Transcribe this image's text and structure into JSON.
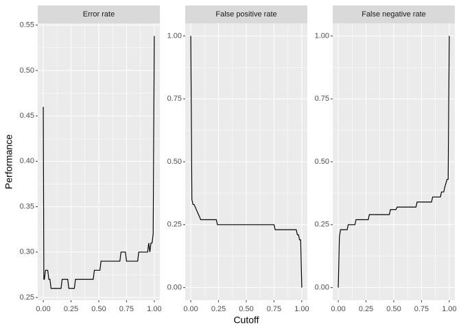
{
  "y_label": "Performance",
  "x_label": "Cutoff",
  "chart_data": [
    {
      "type": "line",
      "title": "Error rate",
      "color": "#000000",
      "x": [
        0,
        0.005,
        0.01,
        0.02,
        0.04,
        0.05,
        0.06,
        0.07,
        0.16,
        0.17,
        0.22,
        0.23,
        0.28,
        0.29,
        0.45,
        0.46,
        0.51,
        0.52,
        0.69,
        0.7,
        0.74,
        0.75,
        0.85,
        0.86,
        0.94,
        0.95,
        0.96,
        0.97,
        0.98,
        0.99,
        1.0
      ],
      "values": [
        0.46,
        0.27,
        0.27,
        0.28,
        0.28,
        0.27,
        0.27,
        0.26,
        0.26,
        0.27,
        0.27,
        0.26,
        0.26,
        0.27,
        0.27,
        0.28,
        0.28,
        0.29,
        0.29,
        0.3,
        0.3,
        0.29,
        0.29,
        0.3,
        0.3,
        0.31,
        0.3,
        0.31,
        0.31,
        0.32,
        0.538
      ],
      "xlim": [
        -0.05,
        1.05
      ],
      "xticks": [
        {
          "value": 0,
          "label": "0.00"
        },
        0.25,
        {
          "value": 0.5,
          "label": "0.50"
        },
        0.75,
        {
          "value": 1,
          "label": "1.00"
        }
      ],
      "ylim": [
        0.247,
        0.552
      ],
      "yticks": [
        0.25,
        {
          "value": 0.3,
          "label": "0.30"
        },
        0.35,
        {
          "value": 0.4,
          "label": "0.40"
        },
        0.45,
        {
          "value": 0.5,
          "label": "0.50"
        },
        0.55
      ],
      "grid": true
    },
    {
      "type": "line",
      "title": "False positive rate",
      "color": "#000000",
      "x": [
        0,
        0.01,
        0.02,
        0.03,
        0.05,
        0.06,
        0.07,
        0.09,
        0.23,
        0.24,
        0.75,
        0.76,
        0.95,
        0.96,
        0.97,
        0.98,
        0.99,
        1.0
      ],
      "values": [
        1,
        0.35,
        0.33,
        0.33,
        0.31,
        0.3,
        0.29,
        0.27,
        0.27,
        0.25,
        0.25,
        0.23,
        0.23,
        0.21,
        0.21,
        0.19,
        0.19,
        0
      ],
      "xlim": [
        -0.05,
        1.05
      ],
      "xticks": [
        {
          "value": 0,
          "label": "0.00"
        },
        0.25,
        {
          "value": 0.5,
          "label": "0.50"
        },
        0.75,
        {
          "value": 1,
          "label": "1.00"
        }
      ],
      "ylim": [
        -0.05,
        1.05
      ],
      "yticks": [
        {
          "value": 0,
          "label": "0.00"
        },
        0.25,
        {
          "value": 0.5,
          "label": "0.50"
        },
        0.75,
        {
          "value": 1,
          "label": "1.00"
        }
      ],
      "grid": true
    },
    {
      "type": "line",
      "title": "False negative rate",
      "color": "#000000",
      "x": [
        0,
        0.01,
        0.02,
        0.08,
        0.09,
        0.15,
        0.16,
        0.27,
        0.28,
        0.46,
        0.47,
        0.52,
        0.53,
        0.7,
        0.71,
        0.84,
        0.85,
        0.92,
        0.93,
        0.95,
        0.96,
        0.98,
        0.99,
        1.0
      ],
      "values": [
        0,
        0.2,
        0.23,
        0.23,
        0.25,
        0.25,
        0.27,
        0.27,
        0.29,
        0.29,
        0.31,
        0.31,
        0.32,
        0.32,
        0.34,
        0.34,
        0.36,
        0.36,
        0.38,
        0.38,
        0.4,
        0.43,
        0.43,
        1.0
      ],
      "xlim": [
        -0.05,
        1.05
      ],
      "xticks": [
        {
          "value": 0,
          "label": "0.00"
        },
        0.25,
        {
          "value": 0.5,
          "label": "0.50"
        },
        0.75,
        {
          "value": 1,
          "label": "1.00"
        }
      ],
      "ylim": [
        -0.05,
        1.05
      ],
      "yticks": [
        {
          "value": 0,
          "label": "0.00"
        },
        0.25,
        {
          "value": 0.5,
          "label": "0.50"
        },
        0.75,
        {
          "value": 1,
          "label": "1.00"
        }
      ],
      "grid": true
    }
  ]
}
